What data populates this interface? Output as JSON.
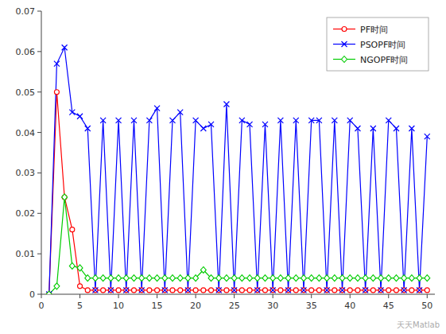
{
  "chart_data": {
    "type": "line",
    "x": [
      1,
      2,
      3,
      4,
      5,
      6,
      7,
      8,
      9,
      10,
      11,
      12,
      13,
      14,
      15,
      16,
      17,
      18,
      19,
      20,
      21,
      22,
      23,
      24,
      25,
      26,
      27,
      28,
      29,
      30,
      31,
      32,
      33,
      34,
      35,
      36,
      37,
      38,
      39,
      40,
      41,
      42,
      43,
      44,
      45,
      46,
      47,
      48,
      49,
      50
    ],
    "series": [
      {
        "name": "PF时间",
        "color": "#ff0000",
        "marker": "circle",
        "values": [
          0.0,
          0.05,
          0.024,
          0.016,
          0.002,
          0.001,
          0.001,
          0.001,
          0.001,
          0.001,
          0.001,
          0.001,
          0.001,
          0.001,
          0.001,
          0.001,
          0.001,
          0.001,
          0.001,
          0.001,
          0.001,
          0.001,
          0.001,
          0.001,
          0.001,
          0.001,
          0.001,
          0.001,
          0.001,
          0.001,
          0.001,
          0.001,
          0.001,
          0.001,
          0.001,
          0.001,
          0.001,
          0.001,
          0.001,
          0.001,
          0.001,
          0.001,
          0.001,
          0.001,
          0.001,
          0.001,
          0.001,
          0.001,
          0.001,
          0.001
        ]
      },
      {
        "name": "PSOPF时间",
        "color": "#0000ff",
        "marker": "x",
        "values": [
          0.0,
          0.057,
          0.061,
          0.045,
          0.044,
          0.041,
          0.001,
          0.043,
          0.001,
          0.043,
          0.001,
          0.043,
          0.001,
          0.043,
          0.046,
          0.001,
          0.043,
          0.045,
          0.001,
          0.043,
          0.041,
          0.042,
          0.001,
          0.047,
          0.001,
          0.043,
          0.042,
          0.001,
          0.042,
          0.001,
          0.043,
          0.001,
          0.043,
          0.001,
          0.043,
          0.043,
          0.001,
          0.043,
          0.001,
          0.043,
          0.041,
          0.001,
          0.041,
          0.001,
          0.043,
          0.041,
          0.001,
          0.041,
          0.001,
          0.039
        ]
      },
      {
        "name": "NGOPF时间",
        "color": "#00cc00",
        "marker": "diamond",
        "values": [
          0.0,
          0.002,
          0.024,
          0.007,
          0.0065,
          0.004,
          0.004,
          0.004,
          0.004,
          0.004,
          0.004,
          0.004,
          0.004,
          0.004,
          0.004,
          0.004,
          0.004,
          0.004,
          0.004,
          0.004,
          0.006,
          0.004,
          0.004,
          0.004,
          0.004,
          0.004,
          0.004,
          0.004,
          0.004,
          0.004,
          0.004,
          0.004,
          0.004,
          0.004,
          0.004,
          0.004,
          0.004,
          0.004,
          0.004,
          0.004,
          0.004,
          0.004,
          0.004,
          0.004,
          0.004,
          0.004,
          0.004,
          0.004,
          0.004,
          0.004
        ]
      }
    ],
    "xlim": [
      0,
      51
    ],
    "ylim": [
      0,
      0.07
    ],
    "xticks": [
      0,
      5,
      10,
      15,
      20,
      25,
      30,
      35,
      40,
      45,
      50
    ],
    "yticks": [
      0,
      0.01,
      0.02,
      0.03,
      0.04,
      0.05,
      0.06,
      0.07
    ],
    "grid": false,
    "legend": "upper right",
    "annotations": [
      "天天Matlab"
    ]
  }
}
